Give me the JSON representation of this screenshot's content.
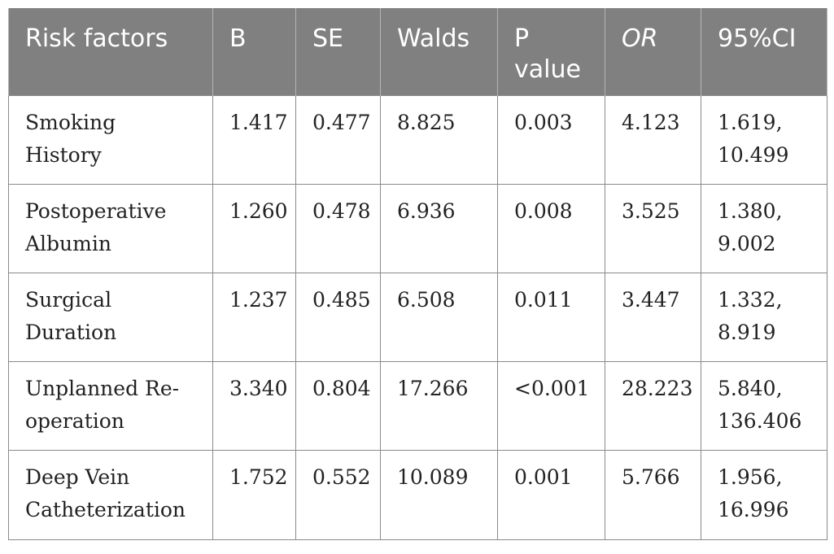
{
  "table": {
    "headers": [
      "Risk factors",
      "B",
      "SE",
      "Walds",
      "P value",
      "OR",
      "95%CI"
    ],
    "rows": [
      [
        "Smoking History",
        "1.417",
        "0.477",
        "8.825",
        "0.003",
        "4.123",
        "1.619, 10.499"
      ],
      [
        "Postoperative Albumin",
        "1.260",
        "0.478",
        "6.936",
        "0.008",
        "3.525",
        "1.380, 9.002"
      ],
      [
        "Surgical Duration",
        "1.237",
        "0.485",
        "6.508",
        "0.011",
        "3.447",
        "1.332, 8.919"
      ],
      [
        "Unplanned Re-operation",
        "3.340",
        "0.804",
        "17.266",
        "<0.001",
        "28.223",
        "5.840, 136.406"
      ],
      [
        "Deep Vein Catheterization",
        "1.752",
        "0.552",
        "10.089",
        "0.001",
        "5.766",
        "1.956, 16.996"
      ]
    ]
  },
  "colors": {
    "header_bg": "#808080",
    "header_text": "#ffffff",
    "border": "#8a8a8a"
  }
}
